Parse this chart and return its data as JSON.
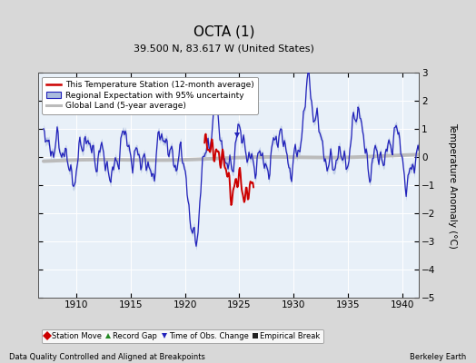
{
  "title": "OCTA (1)",
  "subtitle": "39.500 N, 83.617 W (United States)",
  "ylabel": "Temperature Anomaly (°C)",
  "xlabel_left": "Data Quality Controlled and Aligned at Breakpoints",
  "xlabel_right": "Berkeley Earth",
  "xlim": [
    1906.5,
    1941.5
  ],
  "ylim": [
    -5,
    3
  ],
  "yticks": [
    -5,
    -4,
    -3,
    -2,
    -1,
    0,
    1,
    2,
    3
  ],
  "xticks": [
    1910,
    1915,
    1920,
    1925,
    1930,
    1935,
    1940
  ],
  "bg_color": "#d8d8d8",
  "plot_bg_color": "#e8f0f8",
  "grid_color": "#ffffff",
  "legend1_label": "This Temperature Station (12-month average)",
  "legend2_label": "Regional Expectation with 95% uncertainty",
  "legend3_label": "Global Land (5-year average)",
  "legend4_label": "Station Move",
  "legend5_label": "Record Gap",
  "legend6_label": "Time of Obs. Change",
  "legend7_label": "Empirical Break",
  "station_color": "#cc0000",
  "regional_color": "#2222bb",
  "regional_fill_color": "#aabbdd",
  "global_color": "#bbbbbb",
  "obs_marker_color": "#2222bb"
}
